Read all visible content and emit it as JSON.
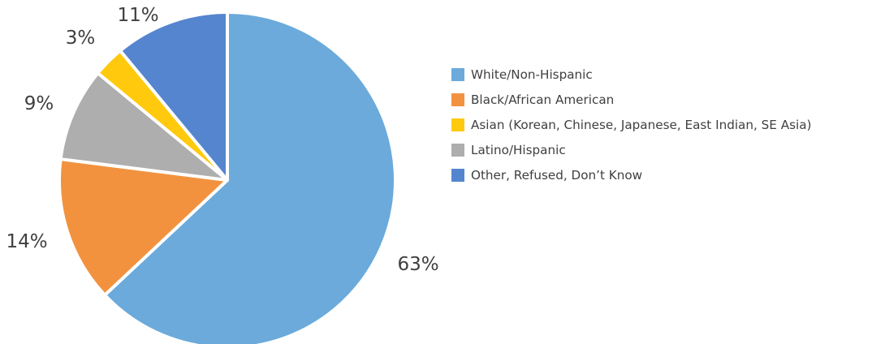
{
  "chart_data": {
    "type": "pie",
    "title": "",
    "categories": [
      "White/Non-Hispanic",
      "Black/African American",
      "Asian (Korean, Chinese, Japanese, East Indian, SE Asia)",
      "Latino/Hispanic",
      "Other, Refused, Don’t Know"
    ],
    "values": [
      63,
      14,
      3,
      9,
      11
    ],
    "labels": [
      "63%",
      "14%",
      "3%",
      "9%",
      "11%"
    ],
    "colors": [
      "#6BAADB",
      "#F2923F",
      "#FFC90E",
      "#AEAEAE",
      "#5585CF"
    ],
    "draw_order": [
      0,
      1,
      3,
      2,
      4
    ],
    "start_angle_deg": 0,
    "direction": "clockwise",
    "legend_position": "right",
    "legend_order": [
      0,
      1,
      2,
      3,
      4
    ]
  }
}
